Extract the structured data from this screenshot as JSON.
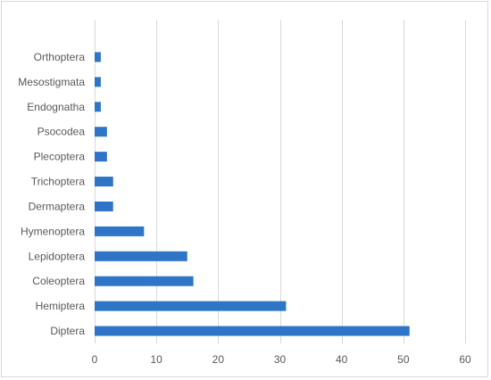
{
  "chart_data": {
    "type": "bar",
    "orientation": "horizontal",
    "title": "",
    "xlabel": "",
    "ylabel": "",
    "categories": [
      "Diptera",
      "Hemiptera",
      "Coleoptera",
      "Lepidoptera",
      "Hymenoptera",
      "Dermaptera",
      "Trichoptera",
      "Plecoptera",
      "Psocodea",
      "Endognatha",
      "Mesostigmata",
      "Orthoptera"
    ],
    "values": [
      51,
      31,
      16,
      15,
      8,
      3,
      3,
      2,
      2,
      1,
      1,
      1
    ],
    "xlim": [
      0,
      60
    ],
    "xticks": [
      "0",
      "10",
      "20",
      "30",
      "40",
      "50",
      "60"
    ],
    "grid": "vertical",
    "bar_color": "#2e75c7",
    "legend": "none"
  }
}
